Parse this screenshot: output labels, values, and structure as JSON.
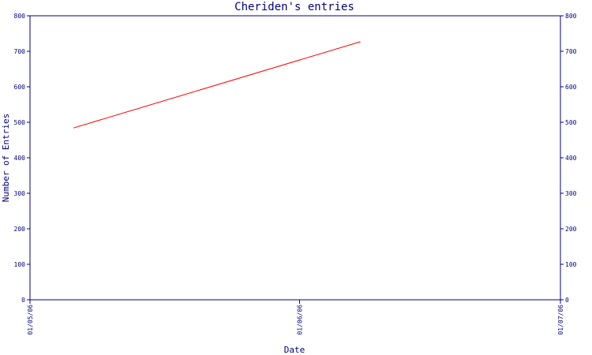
{
  "chart_data": {
    "type": "line",
    "title": "Cheriden's entries",
    "xlabel": "Date",
    "ylabel": "Number of Entries",
    "x_ticks": [
      "01/05/06",
      "01/06/06",
      "01/07/06"
    ],
    "xlim": [
      "2006-05-01",
      "2006-07-01"
    ],
    "ylim": [
      0,
      800
    ],
    "y_ticks": [
      0,
      100,
      200,
      300,
      400,
      500,
      600,
      700,
      800
    ],
    "y_ticks_right": true,
    "grid": false,
    "series": [
      {
        "color": "#ff0000",
        "points": [
          {
            "x": "2006-05-06",
            "y": 484
          },
          {
            "x": "2006-06-08",
            "y": 727
          }
        ]
      }
    ]
  }
}
